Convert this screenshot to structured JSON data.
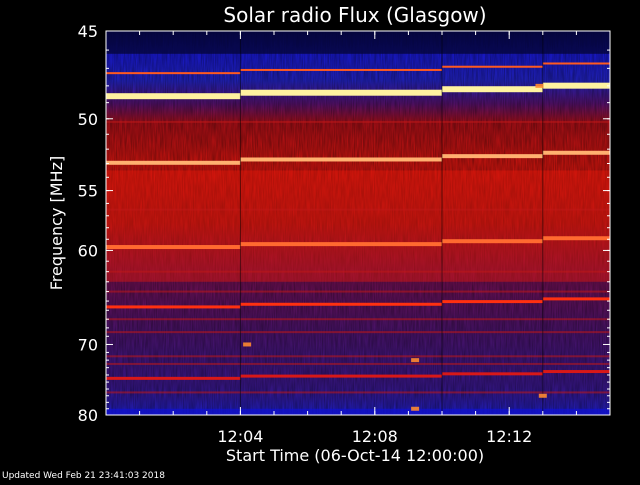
{
  "chart_data": {
    "type": "heatmap",
    "title": "Solar radio Flux (Glasgow)",
    "ylabel": "Frequency [MHz]",
    "xlabel": "Start Time (06-Oct-14 12:00:00)",
    "ylim": [
      45,
      80
    ],
    "y_scale": "reciprocal",
    "y_ticks": [
      "45",
      "50",
      "55",
      "60",
      "70",
      "80"
    ],
    "x_ticks": [
      "12:04",
      "12:08",
      "12:12"
    ],
    "x_range_minutes": [
      0,
      15
    ],
    "colors": {
      "background": "#000000",
      "low": "#1010d0",
      "mid": "#8a1048",
      "high": "#e81808",
      "saturated": "#fff2a0"
    },
    "emission_lines_mhz": [
      47,
      48.3,
      52.6,
      59.3,
      65.2,
      74
    ],
    "intense_band_mhz": [
      53.5,
      63
    ],
    "segments": [
      {
        "start": "12:00",
        "end": "12:04"
      },
      {
        "start": "12:04",
        "end": "12:10"
      },
      {
        "start": "12:10",
        "end": "12:13"
      },
      {
        "start": "12:13",
        "end": "12:15"
      }
    ]
  },
  "footer": {
    "updated": "Updated Wed Feb 21 23:41:03 2018"
  }
}
